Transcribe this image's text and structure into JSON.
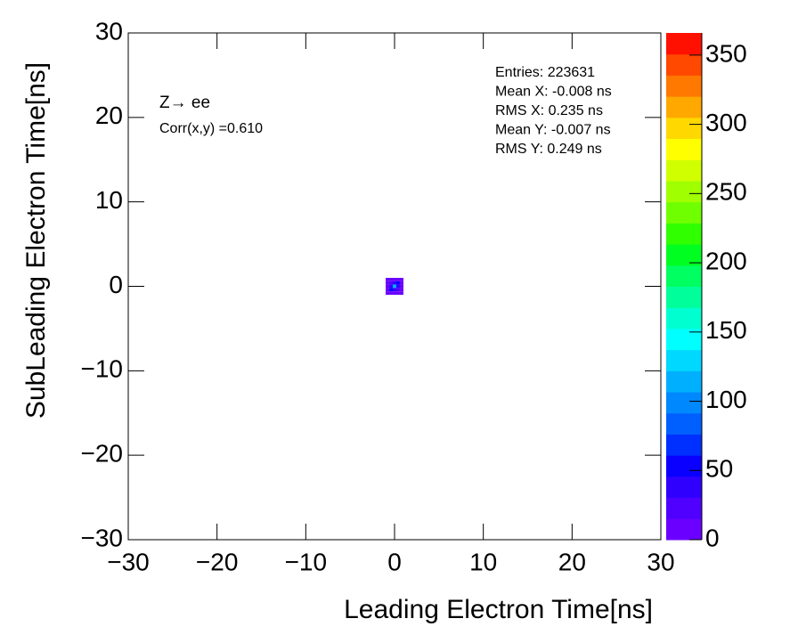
{
  "chart_data": {
    "type": "heatmap",
    "x_label": "Leading Electron Time[ns]",
    "y_label": "SubLeading Electron Time[ns]",
    "annotations": [
      "Z→ ee",
      "Corr(x,y) =0.610"
    ],
    "stats": [
      "Entries: 223631",
      "Mean X: -0.008 ns",
      "RMS X: 0.235 ns",
      "Mean Y: -0.007 ns",
      "RMS Y: 0.249 ns"
    ],
    "xlim": [
      -30,
      30
    ],
    "ylim": [
      -30,
      30
    ],
    "zlim": [
      0,
      366
    ],
    "xticks": [
      {
        "value": -30,
        "label": "−30"
      },
      {
        "value": -20,
        "label": "−20"
      },
      {
        "value": -10,
        "label": "−10"
      },
      0,
      10,
      20,
      30
    ],
    "yticks": [
      {
        "value": -30,
        "label": "−30"
      },
      {
        "value": -20,
        "label": "−20"
      },
      {
        "value": -10,
        "label": "−10"
      },
      0,
      10,
      20,
      30
    ],
    "zticks": [
      0,
      50,
      100,
      150,
      200,
      250,
      300,
      350
    ],
    "bin_width": 0.4,
    "x": [
      -0.8,
      -0.4,
      0,
      0.4,
      0.8,
      -0.8,
      -0.4,
      0,
      0.4,
      0.8,
      -0.8,
      -0.4,
      0,
      0.4,
      0.8,
      -0.8,
      -0.4,
      0,
      0.4,
      0.8,
      -0.8,
      -0.4,
      0,
      0.4,
      0.8
    ],
    "y": [
      0.8,
      0.8,
      0.8,
      0.8,
      0.8,
      0.4,
      0.4,
      0.4,
      0.4,
      0.4,
      0,
      0,
      0,
      0,
      0,
      -0.4,
      -0.4,
      -0.4,
      -0.4,
      -0.4,
      -0.8,
      -0.8,
      -0.8,
      -0.8,
      -0.8
    ],
    "values": [
      2,
      5,
      10,
      15,
      8,
      5,
      20,
      45,
      60,
      15,
      8,
      40,
      120,
      40,
      8,
      15,
      60,
      45,
      20,
      5,
      8,
      15,
      10,
      5,
      2
    ],
    "palette": [
      "#6a00ff",
      "#5000ff",
      "#3000ff",
      "#0a00ff",
      "#0030ff",
      "#0060ff",
      "#0088ff",
      "#00b0ff",
      "#00d8ff",
      "#00ffff",
      "#00ffd0",
      "#00ff9a",
      "#00ff60",
      "#00ff20",
      "#30ff00",
      "#70ff00",
      "#a0ff00",
      "#d0ff00",
      "#ffff00",
      "#ffd800",
      "#ffa800",
      "#ff7800",
      "#ff4800",
      "#ff1000"
    ]
  }
}
